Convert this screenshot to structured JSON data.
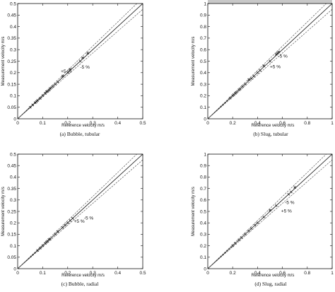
{
  "chart_data": [
    {
      "type": "scatter",
      "caption": "(a) Bubble, tubular",
      "xlabel": "Reference velocity m/s",
      "ylabel": "Measurement velocity m/s",
      "xlim": [
        0,
        0.5
      ],
      "ylim": [
        0,
        0.5
      ],
      "xticks": [
        "0",
        "0.1",
        "0.2",
        "0.3",
        "0.4",
        "0.5"
      ],
      "yticks": [
        "0",
        "0.05",
        "0.1",
        "0.15",
        "0.2",
        "0.25",
        "0.3",
        "0.35",
        "0.4",
        "0.45",
        "0.5"
      ],
      "annotations": [
        "+5 %",
        "-5 %"
      ],
      "reference_lines": [
        "y=x",
        "y=1.05x",
        "y=0.95x"
      ],
      "points": [
        [
          0.05,
          0.05
        ],
        [
          0.06,
          0.06
        ],
        [
          0.07,
          0.07
        ],
        [
          0.075,
          0.074
        ],
        [
          0.08,
          0.08
        ],
        [
          0.09,
          0.089
        ],
        [
          0.1,
          0.1
        ],
        [
          0.11,
          0.11
        ],
        [
          0.115,
          0.117
        ],
        [
          0.12,
          0.12
        ],
        [
          0.125,
          0.124
        ],
        [
          0.13,
          0.132
        ],
        [
          0.14,
          0.14
        ],
        [
          0.15,
          0.15
        ],
        [
          0.16,
          0.16
        ],
        [
          0.18,
          0.185
        ],
        [
          0.2,
          0.2
        ],
        [
          0.21,
          0.215
        ],
        [
          0.25,
          0.25
        ],
        [
          0.26,
          0.265
        ],
        [
          0.28,
          0.285
        ]
      ]
    },
    {
      "type": "scatter",
      "caption": "(b) Slug, tubular",
      "xlabel": "Reference velocity m/s",
      "ylabel": "Measurement velocity m/s",
      "xlim": [
        0,
        1
      ],
      "ylim": [
        0,
        1
      ],
      "xticks": [
        "0",
        "0.2",
        "0.4",
        "0.6",
        "0.8",
        "1"
      ],
      "yticks": [
        "0",
        "0.1",
        "0.2",
        "0.3",
        "0.4",
        "0.5",
        "0.6",
        "0.7",
        "0.8",
        "0.9",
        "1"
      ],
      "annotations": [
        "+5 %",
        "-5 %"
      ],
      "reference_lines": [
        "y=x",
        "y=1.05x",
        "y=0.95x"
      ],
      "points": [
        [
          0.18,
          0.18
        ],
        [
          0.2,
          0.2
        ],
        [
          0.21,
          0.21
        ],
        [
          0.22,
          0.22
        ],
        [
          0.23,
          0.23
        ],
        [
          0.25,
          0.25
        ],
        [
          0.26,
          0.26
        ],
        [
          0.28,
          0.28
        ],
        [
          0.3,
          0.3
        ],
        [
          0.33,
          0.34
        ],
        [
          0.35,
          0.35
        ],
        [
          0.37,
          0.37
        ],
        [
          0.4,
          0.4
        ],
        [
          0.42,
          0.42
        ],
        [
          0.45,
          0.46
        ],
        [
          0.5,
          0.5
        ],
        [
          0.55,
          0.56
        ],
        [
          0.56,
          0.57
        ],
        [
          0.57,
          0.58
        ]
      ]
    },
    {
      "type": "scatter",
      "caption": "(c) Bubble, radial",
      "xlabel": "Reference velocity m/s",
      "ylabel": "Measurement velocity m/s",
      "xlim": [
        0,
        0.5
      ],
      "ylim": [
        0,
        0.5
      ],
      "xticks": [
        "0",
        "0.1",
        "0.2",
        "0.3",
        "0.4",
        "0.5"
      ],
      "yticks": [
        "0",
        "0.05",
        "0.1",
        "0.15",
        "0.2",
        "0.25",
        "0.3",
        "0.35",
        "0.4",
        "0.45",
        "0.5"
      ],
      "annotations": [
        "+5 %",
        "-5 %"
      ],
      "reference_lines": [
        "y=x",
        "y=1.05x",
        "y=0.95x"
      ],
      "points": [
        [
          0.08,
          0.08
        ],
        [
          0.09,
          0.09
        ],
        [
          0.1,
          0.1
        ],
        [
          0.11,
          0.11
        ],
        [
          0.115,
          0.116
        ],
        [
          0.12,
          0.12
        ],
        [
          0.125,
          0.127
        ],
        [
          0.13,
          0.13
        ],
        [
          0.15,
          0.15
        ],
        [
          0.16,
          0.162
        ],
        [
          0.18,
          0.18
        ],
        [
          0.19,
          0.19
        ],
        [
          0.2,
          0.2
        ],
        [
          0.21,
          0.21
        ],
        [
          0.22,
          0.22
        ]
      ]
    },
    {
      "type": "scatter",
      "caption": "(d) Slug, radial",
      "xlabel": "Reference velocity m/s",
      "ylabel": "Measurement velocity m/s",
      "xlim": [
        0,
        1
      ],
      "ylim": [
        0,
        1
      ],
      "xticks": [
        "0",
        "0.2",
        "0.4",
        "0.6",
        "0.8",
        "1"
      ],
      "yticks": [
        "0",
        "0.1",
        "0.2",
        "0.3",
        "0.4",
        "0.5",
        "0.6",
        "0.7",
        "0.8",
        "0.9",
        "1"
      ],
      "annotations": [
        "+5 %",
        "-5 %"
      ],
      "reference_lines": [
        "y=x",
        "y=1.05x",
        "y=0.95x"
      ],
      "points": [
        [
          0.2,
          0.2
        ],
        [
          0.22,
          0.22
        ],
        [
          0.25,
          0.25
        ],
        [
          0.27,
          0.27
        ],
        [
          0.3,
          0.3
        ],
        [
          0.33,
          0.33
        ],
        [
          0.35,
          0.35
        ],
        [
          0.38,
          0.38
        ],
        [
          0.4,
          0.4
        ],
        [
          0.45,
          0.45
        ],
        [
          0.5,
          0.51
        ],
        [
          0.55,
          0.55
        ],
        [
          0.65,
          0.65
        ],
        [
          0.67,
          0.67
        ],
        [
          0.7,
          0.71
        ]
      ]
    }
  ]
}
